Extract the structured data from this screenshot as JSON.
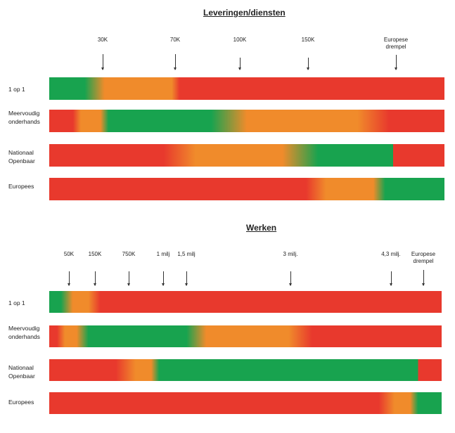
{
  "colors": {
    "green": "#18a34f",
    "orange": "#f08b2b",
    "red": "#e8392d"
  },
  "sections": [
    {
      "title": "Leveringen/diensten",
      "markers": [
        "30K",
        "70K",
        "100K",
        "150K",
        "Europese\ndrempel"
      ],
      "rows": [
        {
          "label": "1 op 1",
          "stops": [
            [
              "green",
              0
            ],
            [
              "green",
              9
            ],
            [
              "orange",
              14
            ],
            [
              "orange",
              31
            ],
            [
              "red",
              33
            ],
            [
              "red",
              100
            ]
          ]
        },
        {
          "label": "Meervoudig\nonderhands",
          "stops": [
            [
              "red",
              0
            ],
            [
              "red",
              6
            ],
            [
              "orange",
              8
            ],
            [
              "orange",
              13
            ],
            [
              "green",
              15
            ],
            [
              "green",
              41
            ],
            [
              "orange",
              50
            ],
            [
              "orange",
              78
            ],
            [
              "red",
              86
            ],
            [
              "red",
              100
            ]
          ]
        },
        {
          "label": "Nationaal\nOpenbaar",
          "stops": [
            [
              "red",
              0
            ],
            [
              "red",
              29
            ],
            [
              "orange",
              37
            ],
            [
              "orange",
              59
            ],
            [
              "green",
              68
            ],
            [
              "green",
              87
            ],
            [
              "red",
              87
            ],
            [
              "red",
              100
            ]
          ]
        },
        {
          "label": "Europees",
          "stops": [
            [
              "red",
              0
            ],
            [
              "red",
              65
            ],
            [
              "orange",
              70
            ],
            [
              "orange",
              82
            ],
            [
              "green",
              85
            ],
            [
              "green",
              100
            ]
          ]
        }
      ]
    },
    {
      "title": "Werken",
      "markers": [
        "50K",
        "150K",
        "750K",
        "1 milj",
        "1,5 milj",
        "3 milj.",
        "4,3 milj.",
        "Europese\ndrempel"
      ],
      "rows": [
        {
          "label": "1 op 1",
          "stops": [
            [
              "green",
              0
            ],
            [
              "green",
              3
            ],
            [
              "orange",
              6
            ],
            [
              "orange",
              10
            ],
            [
              "red",
              13
            ],
            [
              "red",
              100
            ]
          ]
        },
        {
          "label": "Meervoudig\nonderhands",
          "stops": [
            [
              "red",
              0
            ],
            [
              "red",
              2
            ],
            [
              "orange",
              4
            ],
            [
              "orange",
              7
            ],
            [
              "green",
              10
            ],
            [
              "green",
              35
            ],
            [
              "orange",
              40
            ],
            [
              "orange",
              61
            ],
            [
              "red",
              67
            ],
            [
              "red",
              100
            ]
          ]
        },
        {
          "label": "Nationaal\nOpenbaar",
          "stops": [
            [
              "red",
              0
            ],
            [
              "red",
              17
            ],
            [
              "orange",
              22
            ],
            [
              "orange",
              26
            ],
            [
              "green",
              28
            ],
            [
              "green",
              94
            ],
            [
              "red",
              94
            ],
            [
              "red",
              100
            ]
          ]
        },
        {
          "label": "Europees",
          "stops": [
            [
              "red",
              0
            ],
            [
              "red",
              84
            ],
            [
              "orange",
              88
            ],
            [
              "orange",
              92
            ],
            [
              "green",
              94
            ],
            [
              "green",
              100
            ]
          ]
        }
      ]
    }
  ]
}
